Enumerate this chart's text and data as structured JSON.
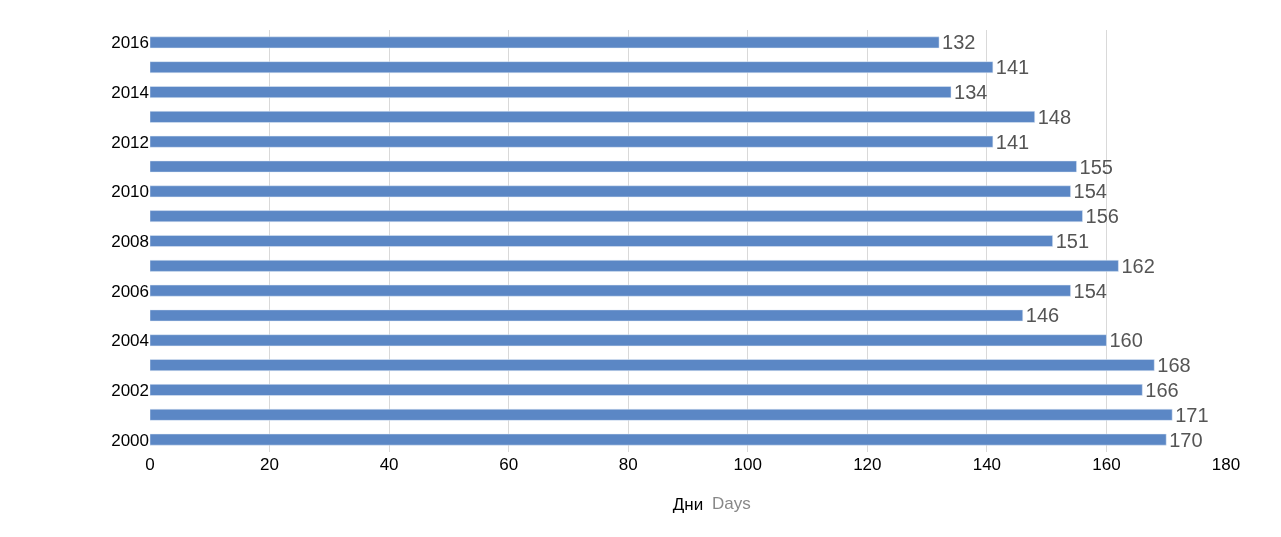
{
  "chart_data": {
    "type": "bar",
    "orientation": "horizontal",
    "categories": [
      "2016",
      null,
      "2014",
      null,
      "2012",
      null,
      "2010",
      null,
      "2008",
      null,
      "2006",
      null,
      "2004",
      null,
      "2002",
      null,
      "2000"
    ],
    "values": [
      132,
      141,
      134,
      148,
      141,
      155,
      154,
      156,
      151,
      162,
      154,
      146,
      160,
      168,
      166,
      171,
      170
    ],
    "color": "#5b87c5",
    "xlim": [
      0,
      180
    ],
    "xticks": [
      0,
      20,
      40,
      60,
      80,
      100,
      120,
      140,
      160,
      180
    ],
    "xlabel": "Дни",
    "annotations": [
      "Days"
    ],
    "grid": "x",
    "data_labels": true
  }
}
